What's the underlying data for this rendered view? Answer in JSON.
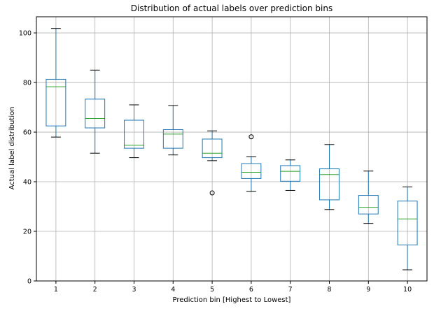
{
  "chart_data": {
    "type": "box",
    "title": "Distribution of actual labels over prediction bins",
    "xlabel": "Prediction bin [Highest to Lowest]",
    "ylabel": "Actual label distribution",
    "categories": [
      "1",
      "2",
      "3",
      "4",
      "5",
      "6",
      "7",
      "8",
      "9",
      "10"
    ],
    "y_ticks": [
      0,
      20,
      40,
      60,
      80,
      100
    ],
    "ylim": [
      0,
      106.5
    ],
    "grid": true,
    "boxes": [
      {
        "category": "1",
        "whislo": 58,
        "q1": 62.5,
        "med": 78.3,
        "q3": 81.3,
        "whishi": 101.8,
        "fliers": []
      },
      {
        "category": "2",
        "whislo": 51.5,
        "q1": 61.7,
        "med": 65.5,
        "q3": 73.3,
        "whishi": 85,
        "fliers": []
      },
      {
        "category": "3",
        "whislo": 49.7,
        "q1": 53.5,
        "med": 54.7,
        "q3": 64.8,
        "whishi": 71,
        "fliers": []
      },
      {
        "category": "4",
        "whislo": 50.8,
        "q1": 53.5,
        "med": 59.2,
        "q3": 61,
        "whishi": 70.7,
        "fliers": []
      },
      {
        "category": "5",
        "whislo": 48.5,
        "q1": 49.7,
        "med": 51.5,
        "q3": 57.2,
        "whishi": 60.5,
        "fliers": [
          35.5
        ]
      },
      {
        "category": "6",
        "whislo": 36.1,
        "q1": 41.3,
        "med": 43.8,
        "q3": 47.3,
        "whishi": 50.1,
        "fliers": [
          58.1
        ]
      },
      {
        "category": "7",
        "whislo": 36.5,
        "q1": 40.2,
        "med": 44.2,
        "q3": 46.5,
        "whishi": 48.8,
        "fliers": []
      },
      {
        "category": "8",
        "whislo": 28.8,
        "q1": 32.7,
        "med": 42.9,
        "q3": 45.2,
        "whishi": 55,
        "fliers": []
      },
      {
        "category": "9",
        "whislo": 23.2,
        "q1": 27,
        "med": 29.7,
        "q3": 34.5,
        "whishi": 44.3,
        "fliers": []
      },
      {
        "category": "10",
        "whislo": 4.5,
        "q1": 14.5,
        "med": 25,
        "q3": 32.2,
        "whishi": 37.9,
        "fliers": []
      }
    ],
    "colors": {
      "box": "#1f77b4",
      "median": "#2ca02c",
      "whisker": "#1f77b4",
      "cap": "#000000",
      "flier": "#000000",
      "grid": "#b0b0b0",
      "spine": "#000000"
    }
  }
}
